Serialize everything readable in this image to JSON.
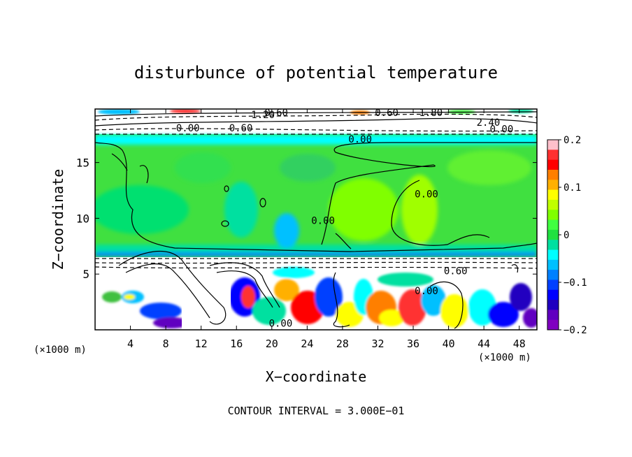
{
  "chart_data": {
    "type": "heatmap",
    "title": "disturbunce of potential temperature",
    "xlabel": "X−coordinate",
    "ylabel": "Z−coordinate",
    "x_unit": "(×1000 m)",
    "y_unit": "(×1000 m)",
    "x_ticks": [
      4,
      8,
      12,
      16,
      20,
      24,
      28,
      32,
      36,
      40,
      44,
      48
    ],
    "y_ticks": [
      5,
      10,
      15
    ],
    "xlim": [
      0,
      50
    ],
    "ylim": [
      0,
      19.8
    ],
    "footer": "CONTOUR INTERVAL = 3.000E−01",
    "colorbar": {
      "ticks": [
        "0.2",
        "0.1",
        "0",
        "−0.1",
        "−0.2"
      ],
      "values": [
        0.2,
        0.1,
        0,
        -0.1,
        -0.2
      ],
      "colors": [
        "#ffc0cb",
        "#ff3030",
        "#ff0000",
        "#ff7f00",
        "#ffb000",
        "#ffff00",
        "#c0ff00",
        "#80ff00",
        "#40ff40",
        "#20e040",
        "#00e0a0",
        "#00ffff",
        "#00c0ff",
        "#0080ff",
        "#0040ff",
        "#0000ff",
        "#2000c0",
        "#6000c0",
        "#8000c0"
      ]
    },
    "contour_labels": [
      {
        "text": "1.20",
        "x": 19,
        "z": 19.3
      },
      {
        "text": "0.60",
        "x": 20.5,
        "z": 19.5
      },
      {
        "text": "0.60",
        "x": 33,
        "z": 19.5
      },
      {
        "text": "1.80",
        "x": 38,
        "z": 19.5
      },
      {
        "text": "0.00",
        "x": 10.5,
        "z": 18.1
      },
      {
        "text": "0.60",
        "x": 16.5,
        "z": 18.1
      },
      {
        "text": "2.40",
        "x": 44.5,
        "z": 18.6
      },
      {
        "text": "0.00",
        "x": 46,
        "z": 18.0
      },
      {
        "text": "0.00",
        "x": 30,
        "z": 17.1
      },
      {
        "text": "0.00",
        "x": 37.5,
        "z": 12.2
      },
      {
        "text": "0.00",
        "x": 25.8,
        "z": 9.8
      },
      {
        "text": "0.60",
        "x": 40.8,
        "z": 5.3
      },
      {
        "text": "0.00",
        "x": 37.5,
        "z": 3.5
      },
      {
        "text": "0.00",
        "x": 21,
        "z": 0.6
      }
    ]
  }
}
